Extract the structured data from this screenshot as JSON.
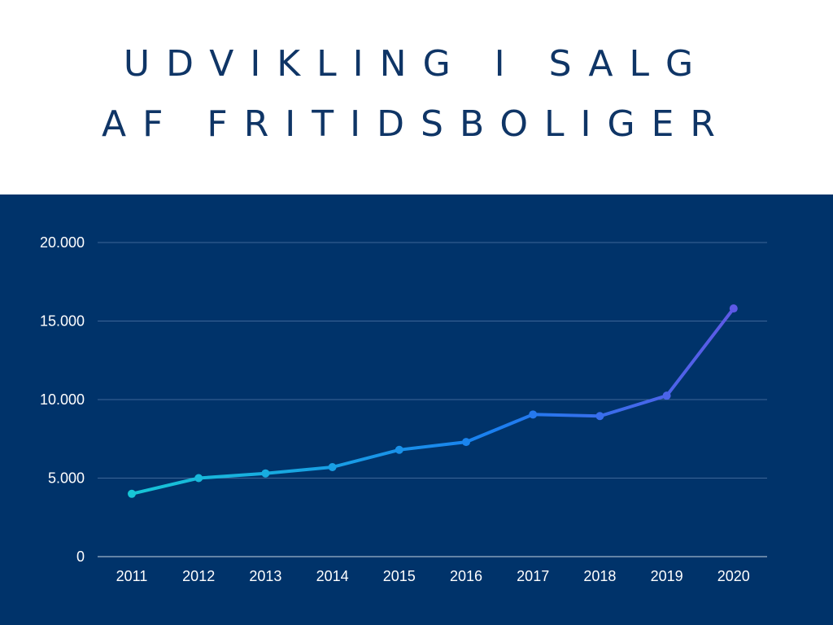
{
  "title_lines": [
    "UDVIKLING I SALG",
    "AF FRITIDSBOLIGER"
  ],
  "colors": {
    "title": "#0f3566",
    "background": "#ffffff",
    "panel": "#00336a",
    "gridline": "#3e6598",
    "line_start": "#17c6d6",
    "line_mid": "#1a7ff0",
    "line_end": "#5e59e6",
    "tick_text": "#ffffff"
  },
  "chart_data": {
    "type": "line",
    "title": "UDVIKLING I SALG AF FRITIDSBOLIGER",
    "xlabel": "",
    "ylabel": "",
    "categories": [
      "2011",
      "2012",
      "2013",
      "2014",
      "2015",
      "2016",
      "2017",
      "2018",
      "2019",
      "2020"
    ],
    "values": [
      4000,
      5000,
      5300,
      5700,
      6800,
      7300,
      9050,
      8950,
      10250,
      15800
    ],
    "ylim": [
      0,
      20000
    ],
    "yticks": [
      0,
      5000,
      10000,
      15000,
      20000
    ],
    "ytick_labels": [
      "0",
      "5.000",
      "10.000",
      "15.000",
      "20.000"
    ],
    "grid": true,
    "legend": "none",
    "markers": true
  }
}
